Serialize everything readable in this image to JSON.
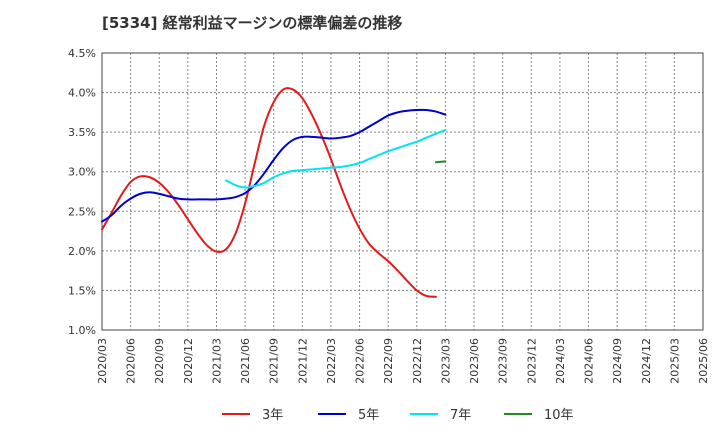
{
  "chart_data": {
    "type": "line",
    "title": "[5334]  経常利益マージンの標準偏差の推移",
    "xlabel": "",
    "ylabel": "",
    "ylim": [
      1.0,
      4.5
    ],
    "yticks": [
      1.0,
      1.5,
      2.0,
      2.5,
      3.0,
      3.5,
      4.0,
      4.5
    ],
    "ytick_labels": [
      "1.0%",
      "1.5%",
      "2.0%",
      "2.5%",
      "3.0%",
      "3.5%",
      "4.0%",
      "4.5%"
    ],
    "xtick_labels": [
      "2020/03",
      "2020/06",
      "2020/09",
      "2020/12",
      "2021/03",
      "2021/06",
      "2021/09",
      "2021/12",
      "2022/03",
      "2022/06",
      "2022/09",
      "2022/12",
      "2023/03",
      "2023/06",
      "2023/09",
      "2023/12",
      "2024/03",
      "2024/06",
      "2024/09",
      "2024/12",
      "2025/03",
      "2025/06"
    ],
    "grid": true,
    "legend_position": "bottom",
    "series": [
      {
        "name": "3年",
        "color": "#e31a1c",
        "start_index": 0,
        "values": [
          2.27,
          2.48,
          2.7,
          2.87,
          2.94,
          2.93,
          2.86,
          2.74,
          2.58,
          2.4,
          2.22,
          2.07,
          1.99,
          2.02,
          2.22,
          2.6,
          3.1,
          3.58,
          3.88,
          4.04,
          4.04,
          3.93,
          3.72,
          3.46,
          3.16,
          2.83,
          2.53,
          2.28,
          2.09,
          1.97,
          1.87,
          1.75,
          1.62,
          1.5,
          1.43,
          1.42
        ]
      },
      {
        "name": "5年",
        "color": "#0000cd",
        "start_index": 0,
        "values": [
          2.37,
          2.45,
          2.57,
          2.66,
          2.72,
          2.74,
          2.72,
          2.69,
          2.66,
          2.65,
          2.65,
          2.65,
          2.65,
          2.66,
          2.68,
          2.73,
          2.83,
          2.98,
          3.15,
          3.3,
          3.4,
          3.44,
          3.44,
          3.43,
          3.42,
          3.43,
          3.45,
          3.5,
          3.57,
          3.64,
          3.71,
          3.75,
          3.77,
          3.78,
          3.78,
          3.76,
          3.72
        ]
      },
      {
        "name": "7年",
        "color": "#00e5ee",
        "start_index": 13,
        "values": [
          2.89,
          2.83,
          2.8,
          2.82,
          2.86,
          2.93,
          2.98,
          3.01,
          3.02,
          3.03,
          3.04,
          3.05,
          3.06,
          3.08,
          3.11,
          3.16,
          3.21,
          3.26,
          3.3,
          3.34,
          3.38,
          3.43,
          3.48,
          3.53
        ]
      },
      {
        "name": "10年",
        "color": "#228b22",
        "start_index": 35,
        "values": [
          3.12,
          3.13
        ]
      }
    ]
  }
}
